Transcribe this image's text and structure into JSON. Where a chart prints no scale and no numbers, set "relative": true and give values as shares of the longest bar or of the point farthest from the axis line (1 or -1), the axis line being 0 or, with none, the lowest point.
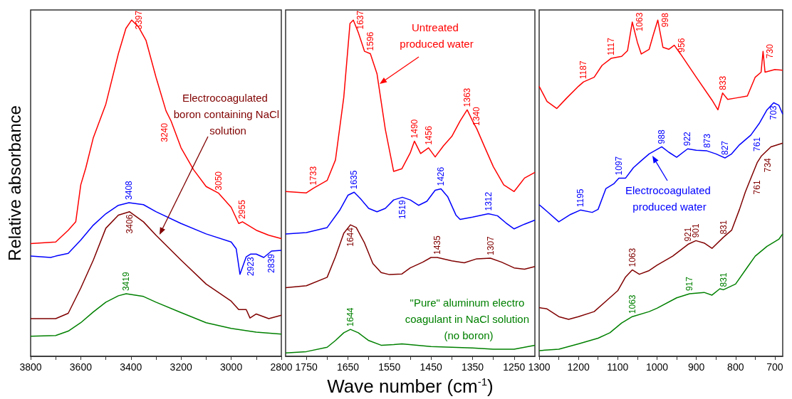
{
  "chart_data": [
    {
      "type": "line",
      "relative": true,
      "ylabel": "Relative absorbance",
      "xlim": [
        3800,
        2800
      ],
      "xticks": [
        3800,
        {
          "value": 3700,
          "label": null
        },
        3600,
        {
          "value": 3500,
          "label": null
        },
        3400,
        {
          "value": 3300,
          "label": null
        },
        3200,
        {
          "value": 3100,
          "label": null
        },
        3000,
        {
          "value": 2900,
          "label": null
        },
        2800
      ],
      "series": [
        {
          "color": "#ff0000",
          "x": [
            3800,
            3700,
            3650,
            3620,
            3600,
            3580,
            3550,
            3500,
            3450,
            3420,
            3397,
            3370,
            3340,
            3300,
            3260,
            3240,
            3200,
            3150,
            3100,
            3050,
            3000,
            2970,
            2955,
            2900,
            2850,
            2800
          ],
          "values": [
            0.335,
            0.34,
            0.375,
            0.4,
            0.51,
            0.56,
            0.65,
            0.75,
            0.9,
            0.975,
            1.0,
            0.98,
            0.94,
            0.83,
            0.73,
            0.7,
            0.62,
            0.555,
            0.505,
            0.485,
            0.443,
            0.395,
            0.4,
            0.375,
            0.36,
            0.35
          ]
        },
        {
          "color": "#0000ff",
          "x": [
            3800,
            3720,
            3700,
            3650,
            3600,
            3550,
            3500,
            3450,
            3408,
            3350,
            3300,
            3200,
            3100,
            3000,
            2980,
            2965,
            2940,
            2923,
            2900,
            2870,
            2839,
            2800
          ],
          "values": [
            0.298,
            0.294,
            0.298,
            0.306,
            0.346,
            0.39,
            0.424,
            0.449,
            0.457,
            0.451,
            0.43,
            0.395,
            0.364,
            0.34,
            0.32,
            0.244,
            0.296,
            0.304,
            0.304,
            0.294,
            0.313,
            0.315
          ]
        },
        {
          "name": "Electrocoagulated boron containing NaCl solution",
          "color": "#800000",
          "x": [
            3800,
            3700,
            3650,
            3600,
            3550,
            3500,
            3450,
            3406,
            3350,
            3300,
            3200,
            3100,
            3000,
            2970,
            2940,
            2925,
            2900,
            2850,
            2800
          ],
          "values": [
            0.112,
            0.112,
            0.128,
            0.203,
            0.286,
            0.381,
            0.42,
            0.43,
            0.4,
            0.36,
            0.286,
            0.215,
            0.164,
            0.139,
            0.139,
            0.114,
            0.126,
            0.112,
            0.122
          ]
        },
        {
          "color": "#008000",
          "x": [
            3800,
            3700,
            3650,
            3600,
            3550,
            3500,
            3450,
            3419,
            3350,
            3300,
            3200,
            3100,
            3000,
            2900,
            2800
          ],
          "values": [
            0.06,
            0.062,
            0.075,
            0.1,
            0.132,
            0.161,
            0.18,
            0.186,
            0.178,
            0.161,
            0.13,
            0.1,
            0.083,
            0.072,
            0.066
          ]
        }
      ],
      "annotations": [
        {
          "text": "3397",
          "x": 3397,
          "y": 1.0
        },
        {
          "text": "3240",
          "x": 3240,
          "y": 0.7
        },
        {
          "text": "3050",
          "x": 3050,
          "y": 0.485
        },
        {
          "text": "2955",
          "x": 2955,
          "y": 0.4
        },
        {
          "text": "3408",
          "x": 3408,
          "y": 0.457
        },
        {
          "text": "2923",
          "x": 2923,
          "y": 0.304
        },
        {
          "text": "2839",
          "x": 2839,
          "y": 0.313
        },
        {
          "text": "3406",
          "x": 3406,
          "y": 0.43
        },
        {
          "text": "3419",
          "x": 3419,
          "y": 0.186
        }
      ]
    },
    {
      "type": "line",
      "relative": true,
      "xlabel": "Wave number (cm$^{-1}$)",
      "xlim": [
        1800,
        1200
      ],
      "xticks": [
        1750,
        {
          "value": 1700,
          "label": null
        },
        1650,
        {
          "value": 1600,
          "label": null
        },
        1550,
        {
          "value": 1500,
          "label": null
        },
        1450,
        {
          "value": 1400,
          "label": null
        },
        1350,
        {
          "value": 1300,
          "label": null
        },
        1250
      ],
      "series": [
        {
          "name": "Untreated produced water",
          "color": "#ff0000",
          "x": [
            1800,
            1750,
            1733,
            1700,
            1680,
            1660,
            1645,
            1637,
            1625,
            1610,
            1596,
            1580,
            1560,
            1540,
            1520,
            1500,
            1490,
            1475,
            1456,
            1440,
            1420,
            1400,
            1380,
            1363,
            1350,
            1340,
            1320,
            1300,
            1275,
            1250,
            1225,
            1200
          ],
          "values": [
            0.49,
            0.486,
            0.5,
            0.523,
            0.584,
            0.77,
            0.99,
            1.0,
            0.963,
            0.907,
            0.9,
            0.84,
            0.675,
            0.55,
            0.558,
            0.605,
            0.64,
            0.603,
            0.62,
            0.593,
            0.626,
            0.654,
            0.7,
            0.733,
            0.7,
            0.677,
            0.62,
            0.564,
            0.51,
            0.49,
            0.53,
            0.547
          ]
        },
        {
          "color": "#0000ff",
          "x": [
            1800,
            1750,
            1700,
            1670,
            1650,
            1635,
            1620,
            1600,
            1580,
            1560,
            1540,
            1519,
            1500,
            1480,
            1460,
            1440,
            1426,
            1410,
            1390,
            1380,
            1350,
            1312,
            1290,
            1270,
            1250,
            1225,
            1200
          ],
          "values": [
            0.364,
            0.368,
            0.383,
            0.434,
            0.479,
            0.488,
            0.469,
            0.44,
            0.43,
            0.44,
            0.465,
            0.473,
            0.465,
            0.449,
            0.461,
            0.494,
            0.498,
            0.475,
            0.42,
            0.407,
            0.414,
            0.424,
            0.418,
            0.397,
            0.379,
            0.393,
            0.405
          ]
        },
        {
          "color": "#800000",
          "x": [
            1800,
            1750,
            1700,
            1680,
            1660,
            1644,
            1630,
            1610,
            1590,
            1570,
            1550,
            1520,
            1500,
            1470,
            1450,
            1435,
            1400,
            1370,
            1340,
            1307,
            1280,
            1250,
            1225,
            1200
          ],
          "values": [
            0.204,
            0.21,
            0.235,
            0.296,
            0.366,
            0.391,
            0.383,
            0.337,
            0.276,
            0.249,
            0.243,
            0.245,
            0.263,
            0.28,
            0.294,
            0.294,
            0.284,
            0.278,
            0.29,
            0.292,
            0.28,
            0.263,
            0.259,
            0.267
          ]
        },
        {
          "name": "\"Pure\" aluminum electro coagulant in NaCl solution (no boron)",
          "color": "#008000",
          "x": [
            1800,
            1750,
            1700,
            1680,
            1660,
            1644,
            1625,
            1600,
            1570,
            1540,
            1520,
            1450,
            1350,
            1300,
            1250,
            1200
          ],
          "values": [
            0.01,
            0.014,
            0.027,
            0.047,
            0.07,
            0.08,
            0.07,
            0.047,
            0.033,
            0.035,
            0.037,
            0.029,
            0.025,
            0.021,
            0.021,
            0.033
          ]
        }
      ],
      "annotations": [
        {
          "text": "1733",
          "x": 1733,
          "y": 0.5
        },
        {
          "text": "1637",
          "x": 1637,
          "y": 1.0
        },
        {
          "text": "1596",
          "x": 1596,
          "y": 0.9
        },
        {
          "text": "1490",
          "x": 1490,
          "y": 0.64
        },
        {
          "text": "1456",
          "x": 1456,
          "y": 0.62
        },
        {
          "text": "1363",
          "x": 1363,
          "y": 0.733
        },
        {
          "text": "1340",
          "x": 1340,
          "y": 0.677
        },
        {
          "text": "1635",
          "x": 1635,
          "y": 0.488
        },
        {
          "text": "1519",
          "x": 1519,
          "y": 0.473
        },
        {
          "text": "1426",
          "x": 1426,
          "y": 0.498
        },
        {
          "text": "1312",
          "x": 1312,
          "y": 0.424
        },
        {
          "text": "1644",
          "x": 1644,
          "y": 0.391
        },
        {
          "text": "1435",
          "x": 1435,
          "y": 0.294
        },
        {
          "text": "1307",
          "x": 1307,
          "y": 0.292
        },
        {
          "text": "1644",
          "x": 1644,
          "y": 0.08
        }
      ]
    },
    {
      "type": "line",
      "relative": true,
      "xlim": [
        1300,
        680
      ],
      "xticks": [
        1300,
        {
          "value": 1250,
          "label": null
        },
        1200,
        {
          "value": 1150,
          "label": null
        },
        1100,
        {
          "value": 1050,
          "label": null
        },
        1000,
        {
          "value": 950,
          "label": null
        },
        900,
        {
          "value": 850,
          "label": null
        },
        800,
        {
          "value": 750,
          "label": null
        },
        700
      ],
      "series": [
        {
          "color": "#ff0000",
          "x": [
            1300,
            1280,
            1255,
            1230,
            1200,
            1187,
            1160,
            1140,
            1117,
            1090,
            1075,
            1063,
            1050,
            1040,
            1020,
            1010,
            998,
            985,
            970,
            956,
            940,
            900,
            860,
            845,
            833,
            820,
            800,
            770,
            750,
            735,
            730,
            725,
            700,
            680
          ],
          "values": [
            0.803,
            0.758,
            0.737,
            0.768,
            0.803,
            0.816,
            0.83,
            0.865,
            0.886,
            0.892,
            0.909,
            0.994,
            0.934,
            0.899,
            0.913,
            0.954,
            1.0,
            0.919,
            0.913,
            0.925,
            0.899,
            0.83,
            0.762,
            0.733,
            0.783,
            0.764,
            0.768,
            0.774,
            0.83,
            0.845,
            0.907,
            0.845,
            0.853,
            0.851
          ]
        },
        {
          "name": "Electrocoagulated produced water",
          "color": "#0000ff",
          "x": [
            1300,
            1280,
            1250,
            1220,
            1195,
            1165,
            1150,
            1130,
            1110,
            1097,
            1080,
            1060,
            1040,
            1020,
            988,
            970,
            950,
            922,
            900,
            873,
            850,
            827,
            810,
            790,
            761,
            740,
            720,
            703,
            690,
            680
          ],
          "values": [
            0.451,
            0.431,
            0.4,
            0.422,
            0.435,
            0.428,
            0.437,
            0.499,
            0.513,
            0.53,
            0.53,
            0.561,
            0.582,
            0.602,
            0.623,
            0.607,
            0.592,
            0.617,
            0.613,
            0.611,
            0.602,
            0.59,
            0.602,
            0.629,
            0.658,
            0.692,
            0.733,
            0.754,
            0.747,
            0.72
          ]
        },
        {
          "color": "#800000",
          "x": [
            1300,
            1280,
            1250,
            1225,
            1200,
            1160,
            1130,
            1100,
            1080,
            1063,
            1045,
            1020,
            1000,
            960,
            921,
            901,
            880,
            860,
            831,
            810,
            790,
            775,
            761,
            745,
            734,
            710,
            680
          ],
          "values": [
            0.145,
            0.141,
            0.118,
            0.11,
            0.118,
            0.133,
            0.164,
            0.195,
            0.236,
            0.257,
            0.244,
            0.255,
            0.271,
            0.298,
            0.333,
            0.344,
            0.337,
            0.321,
            0.354,
            0.375,
            0.437,
            0.489,
            0.53,
            0.576,
            0.596,
            0.623,
            0.634
          ]
        },
        {
          "color": "#008000",
          "x": [
            1300,
            1250,
            1200,
            1150,
            1120,
            1090,
            1063,
            1020,
            1000,
            950,
            917,
            880,
            860,
            840,
            831,
            800,
            770,
            750,
            720,
            690,
            680
          ],
          "values": [
            0.017,
            0.021,
            0.037,
            0.054,
            0.07,
            0.099,
            0.118,
            0.133,
            0.143,
            0.174,
            0.186,
            0.19,
            0.182,
            0.201,
            0.198,
            0.215,
            0.265,
            0.298,
            0.327,
            0.348,
            0.364
          ]
        }
      ],
      "annotations": [
        {
          "text": "1187",
          "x": 1187,
          "y": 0.816
        },
        {
          "text": "1117",
          "x": 1117,
          "y": 0.886
        },
        {
          "text": "1063",
          "x": 1063,
          "y": 0.994
        },
        {
          "text": "998",
          "x": 998,
          "y": 1.0
        },
        {
          "text": "956",
          "x": 956,
          "y": 0.925
        },
        {
          "text": "833",
          "x": 833,
          "y": 0.783
        },
        {
          "text": "730",
          "x": 730,
          "y": 0.907
        },
        {
          "text": "1195",
          "x": 1195,
          "y": 0.435
        },
        {
          "text": "1097",
          "x": 1097,
          "y": 0.53
        },
        {
          "text": "988",
          "x": 988,
          "y": 0.623
        },
        {
          "text": "922",
          "x": 922,
          "y": 0.617
        },
        {
          "text": "873",
          "x": 873,
          "y": 0.611
        },
        {
          "text": "827",
          "x": 827,
          "y": 0.59
        },
        {
          "text": "761",
          "x": 761,
          "y": 0.658
        },
        {
          "text": "703",
          "x": 703,
          "y": 0.754
        },
        {
          "text": "1063",
          "x": 1063,
          "y": 0.257
        },
        {
          "text": "921",
          "x": 921,
          "y": 0.333
        },
        {
          "text": "901",
          "x": 901,
          "y": 0.344
        },
        {
          "text": "831",
          "x": 831,
          "y": 0.354
        },
        {
          "text": "761",
          "x": 761,
          "y": 0.53
        },
        {
          "text": "734",
          "x": 734,
          "y": 0.596
        },
        {
          "text": "1063",
          "x": 1063,
          "y": 0.118
        },
        {
          "text": "917",
          "x": 917,
          "y": 0.186
        },
        {
          "text": "831",
          "x": 831,
          "y": 0.198
        }
      ]
    }
  ]
}
